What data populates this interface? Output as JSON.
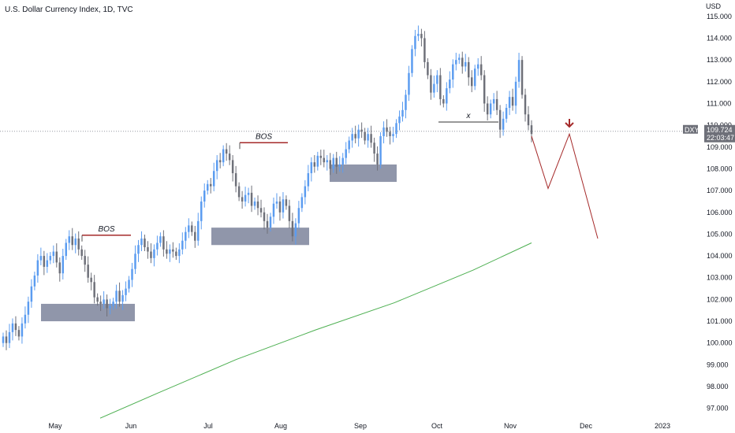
{
  "chart_data": {
    "type": "candlestick",
    "title": "U.S. Dollar Currency Index, 1D, TVC",
    "y_unit": "USD",
    "symbol": "DXY",
    "last_price": "109.724",
    "countdown": "22:03:47",
    "ylim": [
      96.7,
      115.5
    ],
    "y_ticks": [
      "97.000",
      "98.000",
      "99.000",
      "100.000",
      "101.000",
      "102.000",
      "103.000",
      "104.000",
      "105.000",
      "106.000",
      "107.000",
      "108.000",
      "109.000",
      "110.000",
      "111.000",
      "112.000",
      "113.000",
      "114.000",
      "115.000"
    ],
    "x_ticks": [
      "May",
      "Jun",
      "Jul",
      "Aug",
      "Sep",
      "Oct",
      "Nov",
      "Dec",
      "2023"
    ],
    "colors": {
      "up": "#5b9cf0",
      "down": "#6e7079",
      "zone": "#7d849b",
      "bos_line": "#a52a2a",
      "projection": "#a52a2a",
      "moving_average": "#4caf50",
      "price_tag": "#6e7079"
    },
    "price_closes": [
      100.3,
      100.0,
      100.5,
      100.9,
      100.6,
      100.3,
      100.9,
      101.3,
      101.9,
      102.6,
      103.1,
      103.8,
      104.0,
      103.5,
      103.8,
      104.0,
      104.2,
      103.7,
      103.2,
      104.0,
      104.6,
      104.9,
      104.5,
      104.8,
      104.3,
      104.0,
      103.6,
      103.0,
      102.8,
      102.1,
      101.9,
      101.8,
      102.0,
      101.6,
      101.7,
      101.9,
      102.4,
      101.9,
      102.2,
      102.5,
      102.9,
      103.4,
      104.1,
      104.5,
      104.8,
      104.4,
      104.2,
      103.9,
      104.3,
      104.6,
      104.9,
      104.3,
      104.1,
      104.3,
      104.2,
      104.0,
      104.3,
      104.7,
      105.1,
      105.4,
      105.1,
      104.7,
      105.6,
      106.5,
      107.0,
      107.3,
      107.2,
      107.9,
      108.4,
      108.3,
      108.9,
      108.7,
      108.4,
      107.8,
      107.2,
      106.7,
      106.5,
      106.8,
      106.9,
      106.3,
      106.5,
      106.2,
      106.0,
      105.6,
      105.3,
      105.8,
      106.4,
      106.5,
      106.0,
      106.6,
      106.3,
      105.6,
      104.9,
      105.5,
      106.2,
      106.7,
      107.2,
      107.8,
      108.3,
      108.1,
      108.6,
      108.5,
      108.3,
      108.4,
      108.0,
      108.5,
      108.1,
      108.2,
      108.5,
      108.9,
      109.3,
      109.6,
      109.4,
      109.8,
      109.7,
      109.3,
      109.6,
      109.2,
      108.7,
      108.2,
      109.5,
      109.9,
      109.7,
      109.5,
      109.6,
      110.1,
      110.4,
      110.7,
      111.4,
      112.4,
      113.5,
      114.1,
      114.2,
      114.0,
      112.9,
      112.3,
      111.5,
      111.9,
      112.3,
      111.2,
      111.0,
      111.7,
      112.1,
      112.8,
      113.0,
      113.1,
      112.7,
      112.9,
      112.2,
      111.8,
      112.6,
      112.8,
      112.3,
      111.0,
      110.5,
      111.0,
      111.2,
      110.7,
      109.8,
      110.3,
      110.8,
      111.3,
      110.9,
      112.0,
      113.0,
      111.4,
      110.5,
      110.0,
      109.6
    ],
    "annotations": [
      {
        "label": "BOS",
        "type": "break-of-structure",
        "level": 104.95
      },
      {
        "label": "BOS",
        "type": "break-of-structure",
        "level": 109.2
      },
      {
        "label": "x",
        "type": "level",
        "level": 110.15
      }
    ],
    "zones": [
      {
        "label": "demand zone",
        "y_top": 101.8,
        "y_bottom": 101.0
      },
      {
        "label": "demand zone",
        "y_top": 105.3,
        "y_bottom": 104.5
      },
      {
        "label": "demand zone",
        "y_top": 108.2,
        "y_bottom": 107.4
      }
    ],
    "projection_path": [
      109.5,
      107.1,
      109.6,
      104.8
    ],
    "moving_average": [
      96.55,
      97.7,
      99.25,
      100.6,
      101.85,
      103.35,
      104.6
    ],
    "legend": "none",
    "grid": false
  }
}
